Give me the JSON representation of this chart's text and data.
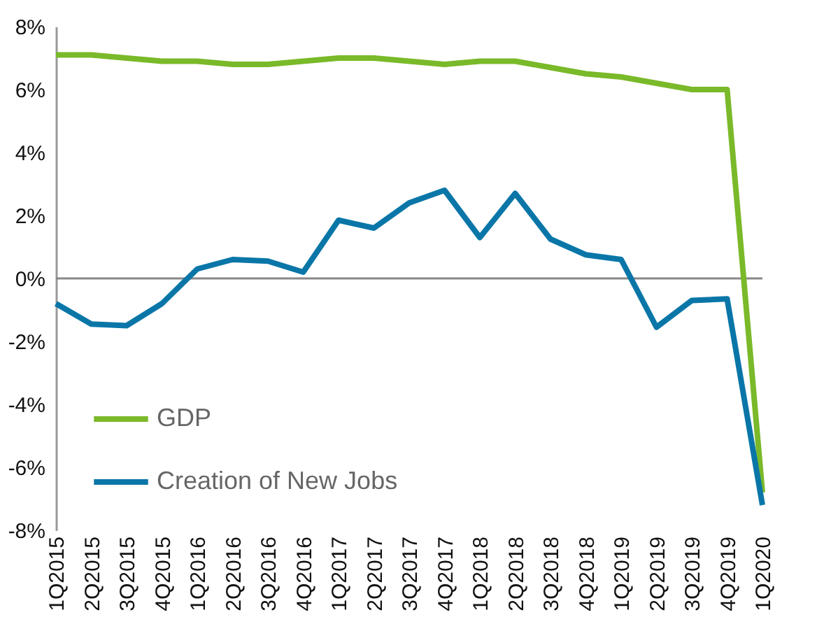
{
  "chart_data": {
    "type": "line",
    "categories": [
      "1Q2015",
      "2Q2015",
      "3Q2015",
      "4Q2015",
      "1Q2016",
      "2Q2016",
      "3Q2016",
      "4Q2016",
      "1Q2017",
      "2Q2017",
      "3Q2017",
      "4Q2017",
      "1Q2018",
      "2Q2018",
      "3Q2018",
      "4Q2018",
      "1Q2019",
      "2Q2019",
      "3Q2019",
      "4Q2019",
      "1Q2020"
    ],
    "series": [
      {
        "name": "GDP",
        "color": "#7ab929",
        "values": [
          7.1,
          7.1,
          7.0,
          6.9,
          6.9,
          6.8,
          6.8,
          6.9,
          7.0,
          7.0,
          6.9,
          6.8,
          6.9,
          6.9,
          6.7,
          6.5,
          6.4,
          6.2,
          6.0,
          6.0,
          -6.8
        ]
      },
      {
        "name": "Creation of New Jobs",
        "color": "#0a76a8",
        "values": [
          -0.8,
          -1.45,
          -1.5,
          -0.8,
          0.3,
          0.6,
          0.55,
          0.2,
          1.85,
          1.6,
          2.4,
          2.8,
          1.3,
          2.7,
          1.25,
          0.75,
          0.6,
          -1.55,
          -0.7,
          -0.65,
          -7.2
        ]
      }
    ],
    "ylim": [
      -8,
      8
    ],
    "yticks": [
      {
        "value": -8,
        "label": "-8%"
      },
      {
        "value": -6,
        "label": "-6%"
      },
      {
        "value": -4,
        "label": "-4%"
      },
      {
        "value": -2,
        "label": "-2%"
      },
      {
        "value": 0,
        "label": "0%"
      },
      {
        "value": 2,
        "label": "2%"
      },
      {
        "value": 4,
        "label": "4%"
      },
      {
        "value": 6,
        "label": "6%"
      },
      {
        "value": 8,
        "label": "8%"
      }
    ],
    "ref_lines": [
      {
        "axis": "y",
        "value": 0,
        "label": null,
        "color": "#888888"
      }
    ],
    "grid": false,
    "legend": "bottom left",
    "marker": "none",
    "line_style": "solid"
  }
}
